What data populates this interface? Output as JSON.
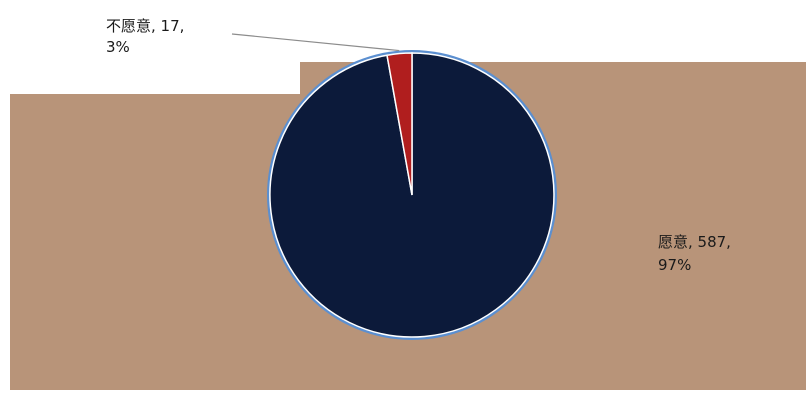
{
  "chart_data": {
    "type": "pie",
    "slices": [
      {
        "label": "愿意",
        "value": 587,
        "percent": "97%",
        "color": "#0c1a3a"
      },
      {
        "label": "不愿意",
        "value": 17,
        "percent": "3%",
        "color": "#b01e1e"
      }
    ],
    "labels": {
      "slice_0_line1": "愿意, 587,",
      "slice_0_line2": "97%",
      "slice_1_line1": "不愿意, 17,",
      "slice_1_line2": "3%"
    },
    "colors": {
      "plot_background": "#b89479",
      "page_background": "#ffffff",
      "pie_edge": "#5b8fd0",
      "leader_line": "#8c8c8c"
    }
  }
}
